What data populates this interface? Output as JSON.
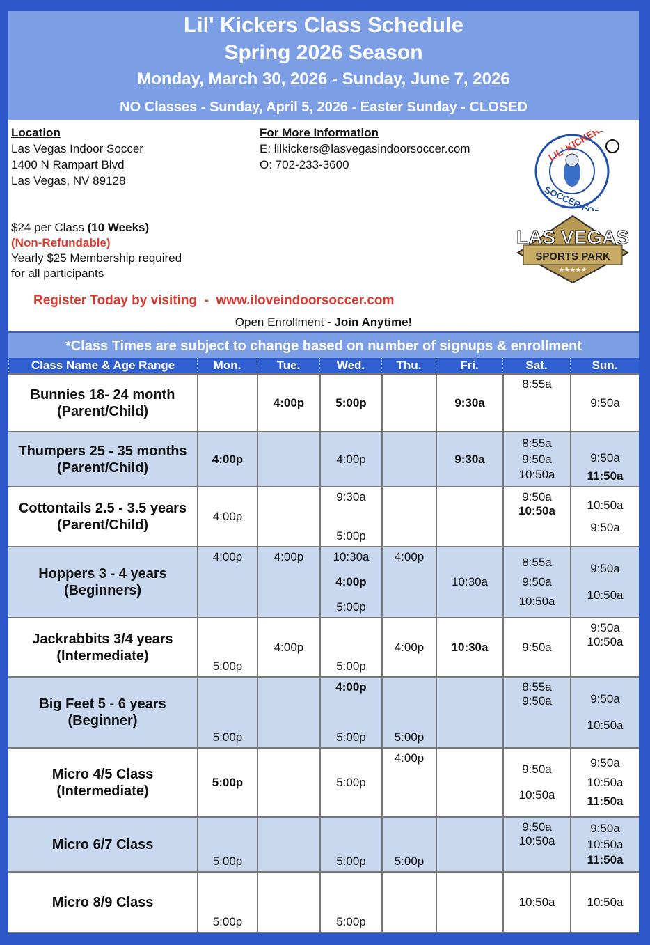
{
  "header": {
    "title": "Lil' Kickers Class Schedule",
    "season": "Spring 2026 Season",
    "dates": "Monday, March 30, 2026 - Sunday, June 7, 2026",
    "closure": "NO Classes - Sunday, April 5, 2026 - Easter Sunday - CLOSED"
  },
  "location": {
    "heading": "Location",
    "lines": [
      "Las Vegas Indoor Soccer",
      "1400 N Rampart Blvd",
      "Las Vegas, NV 89128"
    ]
  },
  "info": {
    "heading": "For More Information",
    "email": "E: lilkickers@lasvegasindoorsoccer.com",
    "phone": "O: 702-233-3600"
  },
  "pricing": {
    "price": "$24 per Class ",
    "weeks": "(10 Weeks)",
    "refund": "(Non-Refundable)",
    "membership": "Yearly $25 Membership ",
    "required": "required",
    "participants": "for all participants"
  },
  "register": "Register Today by visiting  -  www.iloveindoorsoccer.com",
  "enrollment": {
    "text": "Open Enrollment - ",
    "bold": "Join Anytime!"
  },
  "logos": {
    "lil_kickers": "LIL' KICKERS SOCCER FOR KIDS",
    "sports_park": "LAS VEGAS SPORTS PARK"
  },
  "notice": "*Class Times are subject to change based on number of signups & enrollment",
  "colors": {
    "border": "#2d56c9",
    "header_bg": "#7b9ee5",
    "table_header": "#2f5fd0",
    "alt_row": "#c8d8ef",
    "accent_red": "#d93a2f"
  },
  "table": {
    "columns": [
      "Class Name & Age Range",
      "Mon.",
      "Tue.",
      "Wed.",
      "Thu.",
      "Fri.",
      "Sat.",
      "Sun."
    ],
    "rows": [
      {
        "name": [
          "Bunnies 18- 24 month",
          "(Parent/Child)"
        ],
        "days": [
          [],
          [
            {
              "t": "4:00p",
              "b": true
            }
          ],
          [
            {
              "t": "5:00p",
              "b": true
            }
          ],
          [],
          [
            {
              "t": "9:30a",
              "b": true
            }
          ],
          [
            {
              "t": "8:55a"
            }
          ],
          [
            {
              "t": "9:50a"
            }
          ]
        ]
      },
      {
        "name": [
          "Thumpers 25 - 35 months",
          "(Parent/Child)"
        ],
        "days": [
          [
            {
              "t": "4:00p",
              "b": true
            }
          ],
          [],
          [
            {
              "t": "4:00p"
            }
          ],
          [],
          [
            {
              "t": "9:30a",
              "b": true
            }
          ],
          [
            {
              "t": "8:55a"
            },
            {
              "t": "9:50a"
            },
            {
              "t": "10:50a"
            }
          ],
          [
            {
              "t": "9:50a"
            },
            {
              "t": "11:50a",
              "b": true
            }
          ]
        ]
      },
      {
        "name": [
          "Cottontails 2.5 - 3.5 years",
          "(Parent/Child)"
        ],
        "days": [
          [
            {
              "t": "4:00p"
            }
          ],
          [],
          [
            {
              "t": "9:30a"
            },
            {
              "t": "5:00p"
            }
          ],
          [],
          [],
          [
            {
              "t": "9:50a"
            },
            {
              "t": "10:50a",
              "b": true
            }
          ],
          [
            {
              "t": "10:50a"
            },
            {
              "t": "9:50a"
            }
          ]
        ]
      },
      {
        "name": [
          "Hoppers 3 - 4 years",
          "(Beginners)"
        ],
        "days": [
          [
            {
              "t": "4:00p"
            }
          ],
          [
            {
              "t": "4:00p"
            }
          ],
          [
            {
              "t": "10:30a"
            },
            {
              "t": "4:00p",
              "b": true
            },
            {
              "t": "5:00p"
            }
          ],
          [
            {
              "t": "4:00p"
            }
          ],
          [
            {
              "t": "10:30a"
            }
          ],
          [
            {
              "t": "8:55a"
            },
            {
              "t": "9:50a"
            },
            {
              "t": "10:50a"
            }
          ],
          [
            {
              "t": "9:50a"
            },
            {
              "t": "10:50a"
            }
          ]
        ]
      },
      {
        "name": [
          "Jackrabbits 3/4 years",
          "(Intermediate)"
        ],
        "days": [
          [
            {
              "t": "5:00p"
            }
          ],
          [
            {
              "t": "4:00p"
            }
          ],
          [
            {
              "t": "5:00p"
            }
          ],
          [
            {
              "t": "4:00p"
            }
          ],
          [
            {
              "t": "10:30a",
              "b": true
            }
          ],
          [
            {
              "t": "9:50a"
            }
          ],
          [
            {
              "t": "9:50a"
            },
            {
              "t": "10:50a"
            }
          ]
        ]
      },
      {
        "name": [
          "Big Feet 5 - 6 years",
          "(Beginner)"
        ],
        "days": [
          [
            {
              "t": "5:00p"
            }
          ],
          [],
          [
            {
              "t": "4:00p",
              "b": true
            },
            {
              "t": "5:00p"
            }
          ],
          [
            {
              "t": "5:00p"
            }
          ],
          [],
          [
            {
              "t": "8:55a"
            },
            {
              "t": "9:50a"
            }
          ],
          [
            {
              "t": "9:50a"
            },
            {
              "t": "10:50a"
            }
          ]
        ]
      },
      {
        "name": [
          "Micro 4/5 Class",
          "(Intermediate)"
        ],
        "days": [
          [
            {
              "t": "5:00p",
              "b": true
            }
          ],
          [],
          [
            {
              "t": "5:00p"
            }
          ],
          [
            {
              "t": "4:00p"
            }
          ],
          [],
          [
            {
              "t": "9:50a"
            },
            {
              "t": "10:50a"
            }
          ],
          [
            {
              "t": "9:50a"
            },
            {
              "t": "10:50a"
            },
            {
              "t": "11:50a",
              "b": true
            }
          ]
        ]
      },
      {
        "name": [
          "Micro 6/7 Class"
        ],
        "days": [
          [
            {
              "t": "5:00p"
            }
          ],
          [],
          [
            {
              "t": "5:00p"
            }
          ],
          [
            {
              "t": "5:00p"
            }
          ],
          [],
          [
            {
              "t": "9:50a"
            },
            {
              "t": "10:50a"
            }
          ],
          [
            {
              "t": "9:50a"
            },
            {
              "t": "10:50a"
            },
            {
              "t": "11:50a",
              "b": true
            }
          ]
        ]
      },
      {
        "name": [
          "Micro 8/9 Class"
        ],
        "days": [
          [
            {
              "t": "5:00p"
            }
          ],
          [],
          [
            {
              "t": "5:00p"
            }
          ],
          [],
          [],
          [
            {
              "t": "10:50a"
            }
          ],
          [
            {
              "t": "10:50a"
            }
          ]
        ]
      }
    ]
  }
}
